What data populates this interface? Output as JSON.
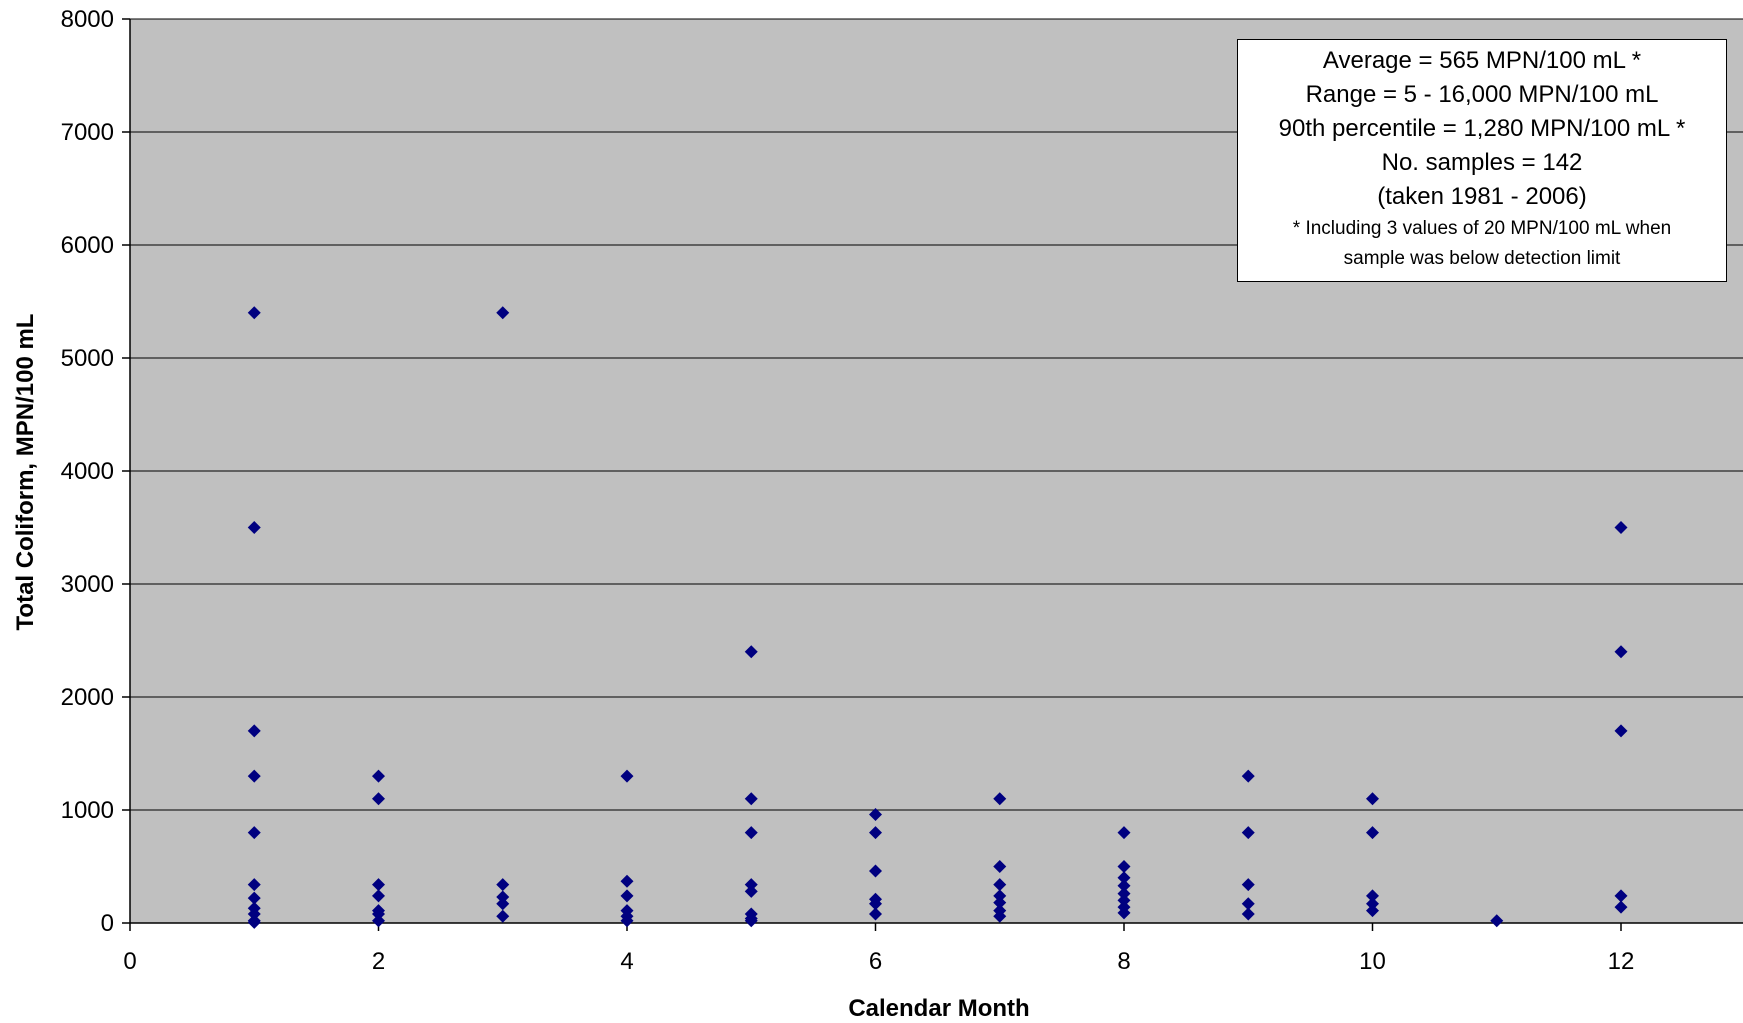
{
  "chart_data": {
    "type": "scatter",
    "title": "",
    "xlabel": "Calendar Month",
    "ylabel": "Total Coliform, MPN/100 mL",
    "xlim": [
      0,
      13
    ],
    "ylim": [
      0,
      8000
    ],
    "xticks": [
      0,
      2,
      4,
      6,
      8,
      10,
      12
    ],
    "yticks": [
      0,
      1000,
      2000,
      3000,
      4000,
      5000,
      6000,
      7000,
      8000
    ],
    "grid": "horizontal",
    "plot_background": "#c0c0c0",
    "marker_color": "#000080",
    "marker": "diamond",
    "series": [
      {
        "points": [
          [
            1,
            5400
          ],
          [
            1,
            3500
          ],
          [
            1,
            1700
          ],
          [
            1,
            1300
          ],
          [
            1,
            800
          ],
          [
            1,
            340
          ],
          [
            1,
            220
          ],
          [
            1,
            130
          ],
          [
            1,
            80
          ],
          [
            1,
            20
          ],
          [
            1,
            5
          ],
          [
            2,
            1300
          ],
          [
            2,
            1100
          ],
          [
            2,
            340
          ],
          [
            2,
            240
          ],
          [
            2,
            110
          ],
          [
            2,
            80
          ],
          [
            2,
            20
          ],
          [
            3,
            5400
          ],
          [
            3,
            340
          ],
          [
            3,
            230
          ],
          [
            3,
            170
          ],
          [
            3,
            60
          ],
          [
            4,
            1300
          ],
          [
            4,
            370
          ],
          [
            4,
            240
          ],
          [
            4,
            110
          ],
          [
            4,
            60
          ],
          [
            4,
            20
          ],
          [
            5,
            2400
          ],
          [
            5,
            1100
          ],
          [
            5,
            800
          ],
          [
            5,
            340
          ],
          [
            5,
            280
          ],
          [
            5,
            80
          ],
          [
            5,
            40
          ],
          [
            5,
            20
          ],
          [
            6,
            960
          ],
          [
            6,
            800
          ],
          [
            6,
            460
          ],
          [
            6,
            210
          ],
          [
            6,
            170
          ],
          [
            6,
            80
          ],
          [
            7,
            1100
          ],
          [
            7,
            500
          ],
          [
            7,
            340
          ],
          [
            7,
            240
          ],
          [
            7,
            180
          ],
          [
            7,
            110
          ],
          [
            7,
            60
          ],
          [
            8,
            800
          ],
          [
            8,
            500
          ],
          [
            8,
            400
          ],
          [
            8,
            330
          ],
          [
            8,
            260
          ],
          [
            8,
            200
          ],
          [
            8,
            140
          ],
          [
            8,
            90
          ],
          [
            9,
            1300
          ],
          [
            9,
            800
          ],
          [
            9,
            340
          ],
          [
            9,
            170
          ],
          [
            9,
            80
          ],
          [
            10,
            1100
          ],
          [
            10,
            800
          ],
          [
            10,
            240
          ],
          [
            10,
            170
          ],
          [
            10,
            110
          ],
          [
            11,
            20
          ],
          [
            12,
            3500
          ],
          [
            12,
            2400
          ],
          [
            12,
            1700
          ],
          [
            12,
            240
          ],
          [
            12,
            140
          ]
        ]
      }
    ],
    "annotation": {
      "lines": [
        "Average = 565 MPN/100 mL *",
        "Range = 5 - 16,000 MPN/100 mL",
        "90th percentile = 1,280 MPN/100 mL *",
        "No. samples = 142",
        "(taken 1981 - 2006)"
      ],
      "notes": [
        "* Including 3 values of 20 MPN/100 mL when",
        "sample was below detection limit"
      ]
    }
  }
}
